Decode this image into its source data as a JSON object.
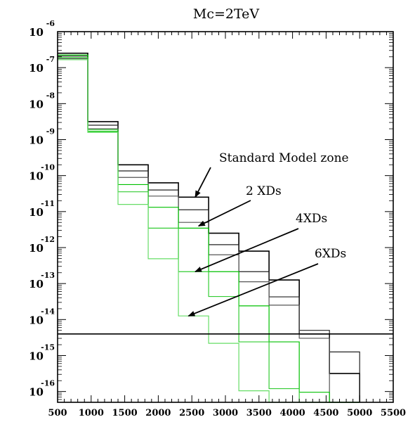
{
  "chart_data": {
    "type": "step",
    "title": "Mc=2TeV",
    "xlabel": "",
    "ylabel": "",
    "xlim": [
      500,
      5500
    ],
    "ylim_log10": [
      -16.3,
      -6
    ],
    "y_scale": "log",
    "x_ticks": [
      "500",
      "1000",
      "1500",
      "2000",
      "2500",
      "3000",
      "3500",
      "4000",
      "4500",
      "5000",
      "5500"
    ],
    "y_ticks": [
      {
        "base": "10",
        "exp": "-6"
      },
      {
        "base": "10",
        "exp": "-7"
      },
      {
        "base": "10",
        "exp": "-8"
      },
      {
        "base": "10",
        "exp": "-9"
      },
      {
        "base": "10",
        "exp": "-10"
      },
      {
        "base": "10",
        "exp": "-11"
      },
      {
        "base": "10",
        "exp": "-12"
      },
      {
        "base": "10",
        "exp": "-13"
      },
      {
        "base": "10",
        "exp": "-14"
      },
      {
        "base": "10",
        "exp": "-15"
      },
      {
        "base": "10",
        "exp": "-16"
      }
    ],
    "bin_edges": [
      500,
      950,
      1400,
      1850,
      2300,
      2750,
      3200,
      3650,
      4100,
      4550,
      5000
    ],
    "series": [
      {
        "color": "#000000",
        "log10_values": [
          -6.6,
          -8.5,
          -9.7,
          -10.2,
          -10.6,
          -11.6,
          -12.1,
          -12.9,
          -14.4,
          -15.5
        ]
      },
      {
        "color": "#222222",
        "log10_values": [
          -6.68,
          -8.6,
          -9.87,
          -10.4,
          -10.95,
          -11.92,
          -12.67,
          -13.37,
          -14.3,
          -14.9
        ]
      },
      {
        "color": "#555555",
        "log10_values": [
          -6.75,
          -8.7,
          -10.05,
          -10.57,
          -11.3,
          -12.2,
          -12.95,
          -13.6,
          -14.52,
          -16.5
        ]
      },
      {
        "color": "#00c000",
        "log10_values": [
          -6.65,
          -8.77,
          -10.25,
          -10.88,
          -11.46,
          -12.67,
          -13.62,
          -14.62,
          -16.02,
          -17.5
        ]
      },
      {
        "color": "#33cc33",
        "log10_values": [
          -6.72,
          -8.72,
          -10.45,
          -11.46,
          -12.67,
          -13.36,
          -14.62,
          -15.92,
          -17.5,
          -17.5
        ]
      },
      {
        "color": "#66dd66",
        "log10_values": [
          -6.78,
          -8.8,
          -10.8,
          -12.31,
          -13.9,
          -14.66,
          -15.98,
          -17.5,
          -17.5,
          -17.5
        ]
      }
    ],
    "reference_line_log10": -14.4,
    "annotations": [
      {
        "text": "Standard Model zone",
        "target": [
          2550,
          -10.6
        ]
      },
      {
        "text": "2 XDs",
        "target": [
          2600,
          -11.4
        ]
      },
      {
        "text": "4XDs",
        "target": [
          2550,
          -12.67
        ]
      },
      {
        "text": "6XDs",
        "target": [
          2450,
          -13.9
        ]
      }
    ],
    "grid": false,
    "legend": "none"
  }
}
